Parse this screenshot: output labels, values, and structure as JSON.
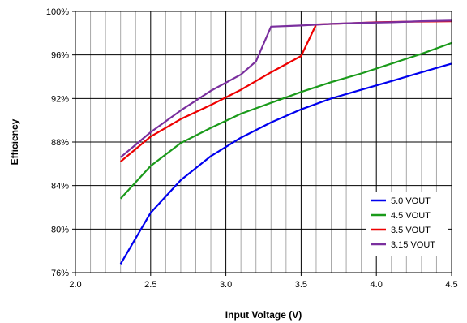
{
  "chart_data": {
    "type": "line",
    "xlabel": "Input Voltage (V)",
    "ylabel": "Efficiency",
    "xlim": [
      2.0,
      4.5
    ],
    "ylim": [
      76,
      100
    ],
    "x_major_ticks": [
      2.0,
      2.5,
      3.0,
      3.5,
      4.0,
      4.5
    ],
    "x_tick_labels": [
      "2.0",
      "2.5",
      "3.0",
      "3.5",
      "4.0",
      "4.5"
    ],
    "x_minor_step": 0.1,
    "y_major_ticks": [
      76,
      80,
      84,
      88,
      92,
      96,
      100
    ],
    "y_tick_labels": [
      "76%",
      "80%",
      "84%",
      "88%",
      "92%",
      "96%",
      "100%"
    ],
    "y_minor_step": 1,
    "grid": true,
    "legend_position": "bottom-right",
    "series": [
      {
        "name": "5.0 VOUT",
        "color": "#0000ee",
        "points": [
          [
            2.3,
            76.8
          ],
          [
            2.5,
            81.5
          ],
          [
            2.7,
            84.5
          ],
          [
            2.9,
            86.7
          ],
          [
            3.1,
            88.4
          ],
          [
            3.3,
            89.8
          ],
          [
            3.5,
            91.0
          ],
          [
            3.7,
            92.0
          ],
          [
            3.9,
            92.8
          ],
          [
            4.1,
            93.6
          ],
          [
            4.3,
            94.4
          ],
          [
            4.5,
            95.2
          ]
        ]
      },
      {
        "name": "4.5 VOUT",
        "color": "#1a9a1a",
        "points": [
          [
            2.3,
            82.8
          ],
          [
            2.5,
            85.8
          ],
          [
            2.7,
            87.9
          ],
          [
            2.9,
            89.3
          ],
          [
            3.1,
            90.6
          ],
          [
            3.3,
            91.6
          ],
          [
            3.5,
            92.6
          ],
          [
            3.7,
            93.5
          ],
          [
            3.9,
            94.3
          ],
          [
            4.1,
            95.2
          ],
          [
            4.3,
            96.1
          ],
          [
            4.5,
            97.1
          ]
        ]
      },
      {
        "name": "3.5 VOUT",
        "color": "#ee0000",
        "points": [
          [
            2.3,
            86.2
          ],
          [
            2.5,
            88.5
          ],
          [
            2.7,
            90.1
          ],
          [
            2.9,
            91.4
          ],
          [
            3.1,
            92.8
          ],
          [
            3.3,
            94.4
          ],
          [
            3.5,
            95.9
          ],
          [
            3.6,
            98.8
          ],
          [
            3.8,
            98.9
          ],
          [
            4.0,
            99.0
          ],
          [
            4.2,
            99.05
          ],
          [
            4.5,
            99.1
          ]
        ]
      },
      {
        "name": "3.15 VOUT",
        "color": "#7a2f9e",
        "points": [
          [
            2.3,
            86.6
          ],
          [
            2.5,
            88.9
          ],
          [
            2.7,
            90.9
          ],
          [
            2.9,
            92.7
          ],
          [
            3.1,
            94.2
          ],
          [
            3.2,
            95.4
          ],
          [
            3.3,
            98.6
          ],
          [
            3.5,
            98.7
          ],
          [
            3.7,
            98.85
          ],
          [
            3.9,
            98.95
          ],
          [
            4.1,
            99.0
          ],
          [
            4.3,
            99.1
          ],
          [
            4.5,
            99.15
          ]
        ]
      }
    ]
  }
}
